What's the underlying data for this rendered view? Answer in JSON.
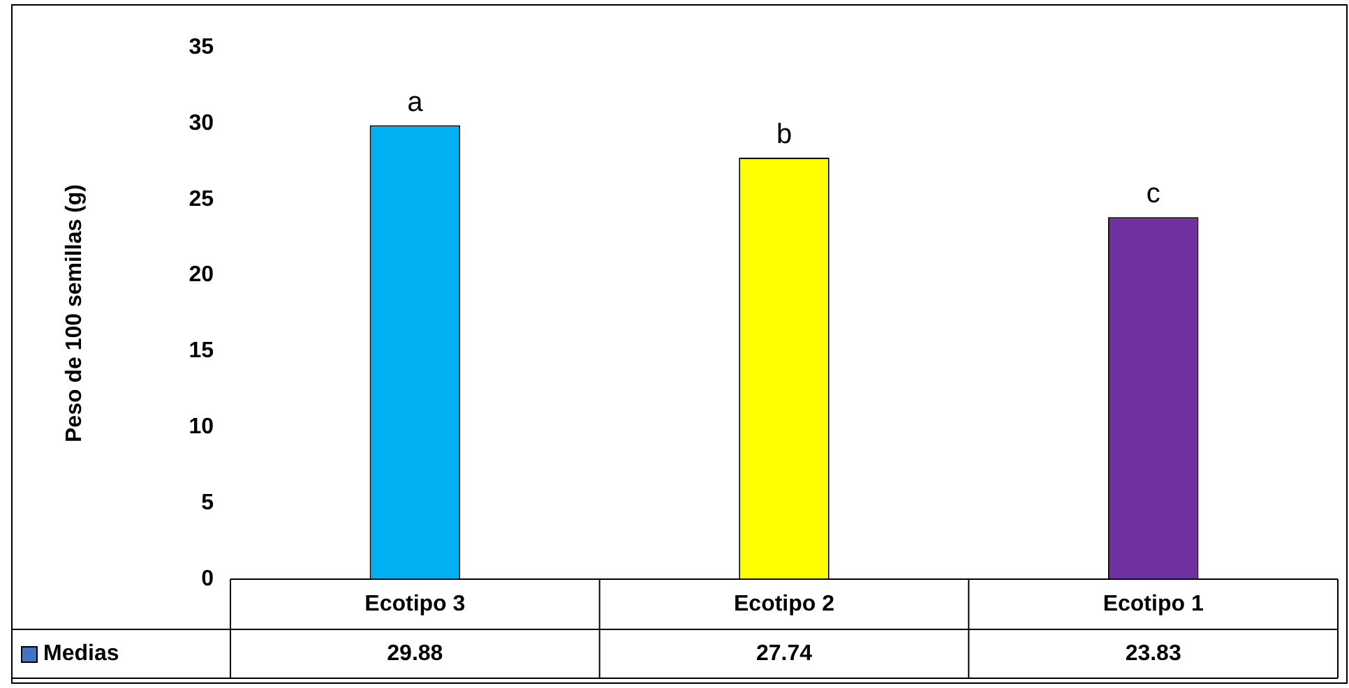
{
  "chart_data": {
    "type": "bar",
    "ylabel": "Peso de 100 semillas (g)",
    "categories": [
      "Ecotipo 3",
      "Ecotipo 2",
      "Ecotipo 1"
    ],
    "series": [
      {
        "name": "Medias",
        "color": "#4472c4",
        "colors": [
          "#00b0f0",
          "#ffff00",
          "#7030a0"
        ],
        "values": [
          29.88,
          27.74,
          23.83
        ]
      }
    ],
    "ylim": [
      0,
      35
    ],
    "yticks": [
      0,
      5,
      10,
      15,
      20,
      25,
      30,
      35
    ],
    "grid": false,
    "legend": "bottom",
    "data_labels": true,
    "annotations": [
      {
        "text": "a",
        "x": "Ecotipo 3",
        "y": 29.88
      },
      {
        "text": "b",
        "x": "Ecotipo 2",
        "y": 27.74
      },
      {
        "text": "c",
        "x": "Ecotipo 1",
        "y": 23.83
      }
    ]
  }
}
